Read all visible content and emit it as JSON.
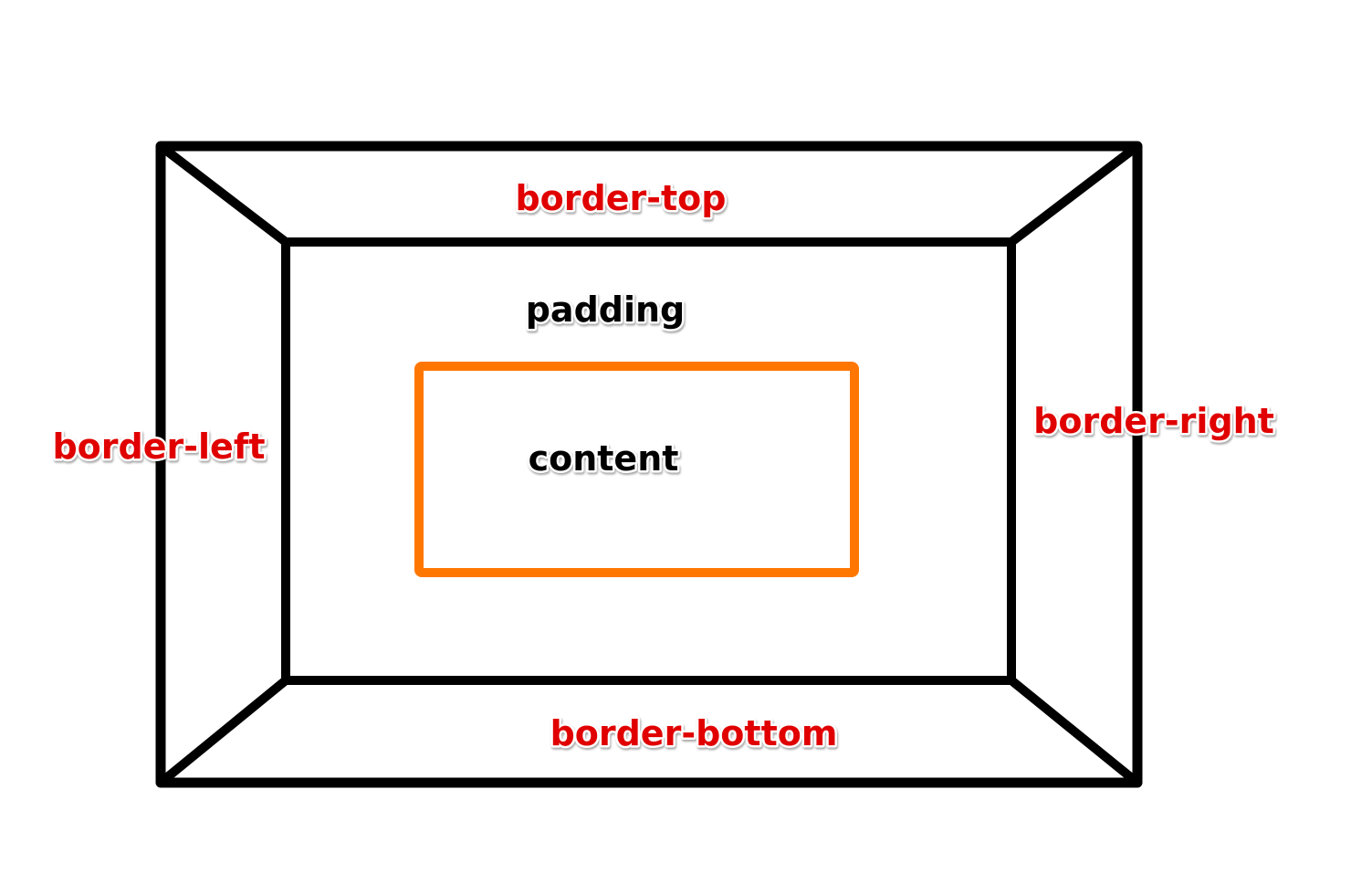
{
  "diagram": {
    "labels": {
      "border_top": "border-top",
      "border_left": "border-left",
      "border_right": "border-right",
      "border_bottom": "border-bottom",
      "padding": "padding",
      "content": "content"
    },
    "colors": {
      "border_line": "#000000",
      "content_box": "#ff7700",
      "border_label": "#e00000",
      "inner_label": "#000000",
      "background": "#ffffff"
    }
  }
}
